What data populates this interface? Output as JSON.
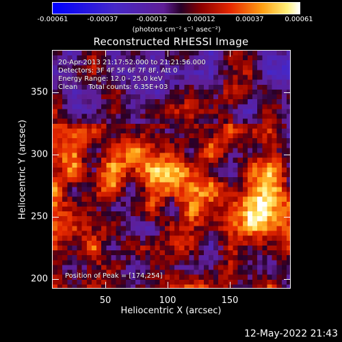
{
  "colorbar": {
    "ticks": [
      "-0.00061",
      "-0.00037",
      "-0.00012",
      "0.00012",
      "0.00037",
      "0.00061"
    ],
    "units": "(photons cm⁻² s⁻¹ asec⁻²)",
    "min": -0.00061,
    "max": 0.00061
  },
  "chart_data": {
    "type": "heatmap",
    "title": "Reconstructed RHESSI Image",
    "xlabel": "Heliocentric X (arcsec)",
    "ylabel": "Heliocentric Y (arcsec)",
    "xlim": [
      7,
      198
    ],
    "ylim": [
      193,
      384
    ],
    "xticks": [
      "50",
      "100",
      "150"
    ],
    "yticks": [
      "200",
      "250",
      "300",
      "350"
    ],
    "annotations": [
      "20-Apr-2013 21:17:52.000 to 21:21:56.000",
      "Detectors: 3F 4F 5F 6F 7F 8F, Att 0",
      "Energy Range: 12.0 - 25.0 keV",
      "Clean     Total counts: 6.35E+03"
    ],
    "peak_label": "Position of Peak = [174,254]",
    "peak": [
      174,
      254
    ]
  },
  "timestamp": "12-May-2022 21:43"
}
